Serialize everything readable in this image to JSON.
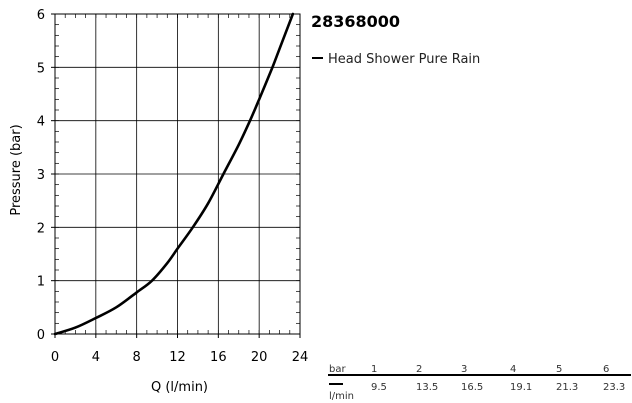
{
  "chart_data": {
    "type": "line",
    "title": "28368000",
    "xlabel": "Q (l/min)",
    "ylabel": "Pressure (bar)",
    "xlim": [
      0,
      24
    ],
    "ylim": [
      0,
      6
    ],
    "xticks": [
      0,
      4,
      8,
      12,
      16,
      20,
      24
    ],
    "yticks": [
      0,
      1,
      2,
      3,
      4,
      5,
      6
    ],
    "grid": true,
    "legend_position": "right",
    "series": [
      {
        "name": "Head Shower Pure Rain",
        "color": "#000000",
        "x": [
          0,
          2,
          4,
          6,
          8,
          9.5,
          11,
          12,
          13.5,
          15,
          16.5,
          18,
          19.1,
          20,
          21.3,
          22,
          23.3
        ],
        "y": [
          0,
          0.12,
          0.3,
          0.5,
          0.78,
          1.0,
          1.33,
          1.6,
          2.0,
          2.45,
          3.0,
          3.55,
          4.0,
          4.4,
          5.0,
          5.35,
          6.0
        ]
      }
    ],
    "table": {
      "row1_label": "bar",
      "row2_label": "l/min",
      "pressure_values": [
        "1",
        "2",
        "3",
        "4",
        "5",
        "6"
      ],
      "flow_values": [
        "9.5",
        "13.5",
        "16.5",
        "19.1",
        "21.3",
        "23.3"
      ]
    }
  }
}
